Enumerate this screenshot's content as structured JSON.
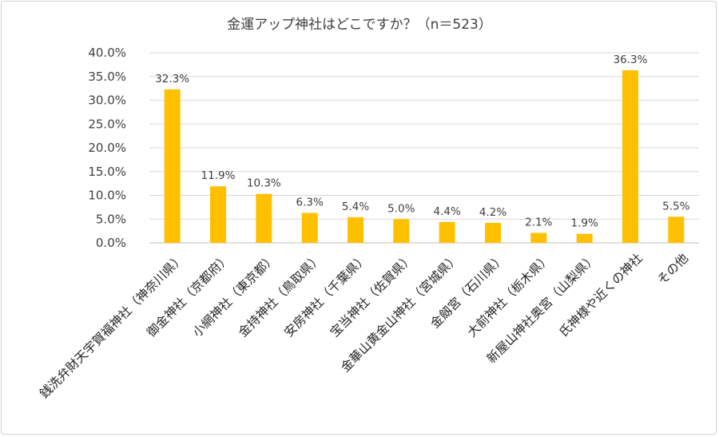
{
  "chart_data": {
    "type": "bar",
    "title": "金運アップ神社はどこですか？（n＝523）",
    "xlabel": "",
    "ylabel": "",
    "ylim": [
      0,
      40
    ],
    "yticks": [
      "0.0%",
      "5.0%",
      "10.0%",
      "15.0%",
      "20.0%",
      "25.0%",
      "30.0%",
      "35.0%",
      "40.0%"
    ],
    "grid": true,
    "bar_color": "#FFC000",
    "categories": [
      "銭洗弁財天宇賀福神社（神奈川県）",
      "御金神社（京都府）",
      "小網神社（東京都）",
      "金持神社（鳥取県）",
      "安房神社（千葉県）",
      "宝当神社（佐賀県）",
      "金華山黄金山神社（宮城県）",
      "金劔宮（石川県）",
      "大前神社（栃木県）",
      "新屋山神社奥宮（山梨県）",
      "氏神様や近くの神社",
      "その他"
    ],
    "values": [
      32.3,
      11.9,
      10.3,
      6.3,
      5.4,
      5.0,
      4.4,
      4.2,
      2.1,
      1.9,
      36.3,
      5.5
    ],
    "data_labels": [
      "32.3%",
      "11.9%",
      "10.3%",
      "6.3%",
      "5.4%",
      "5.0%",
      "4.4%",
      "4.2%",
      "2.1%",
      "1.9%",
      "36.3%",
      "5.5%"
    ]
  }
}
